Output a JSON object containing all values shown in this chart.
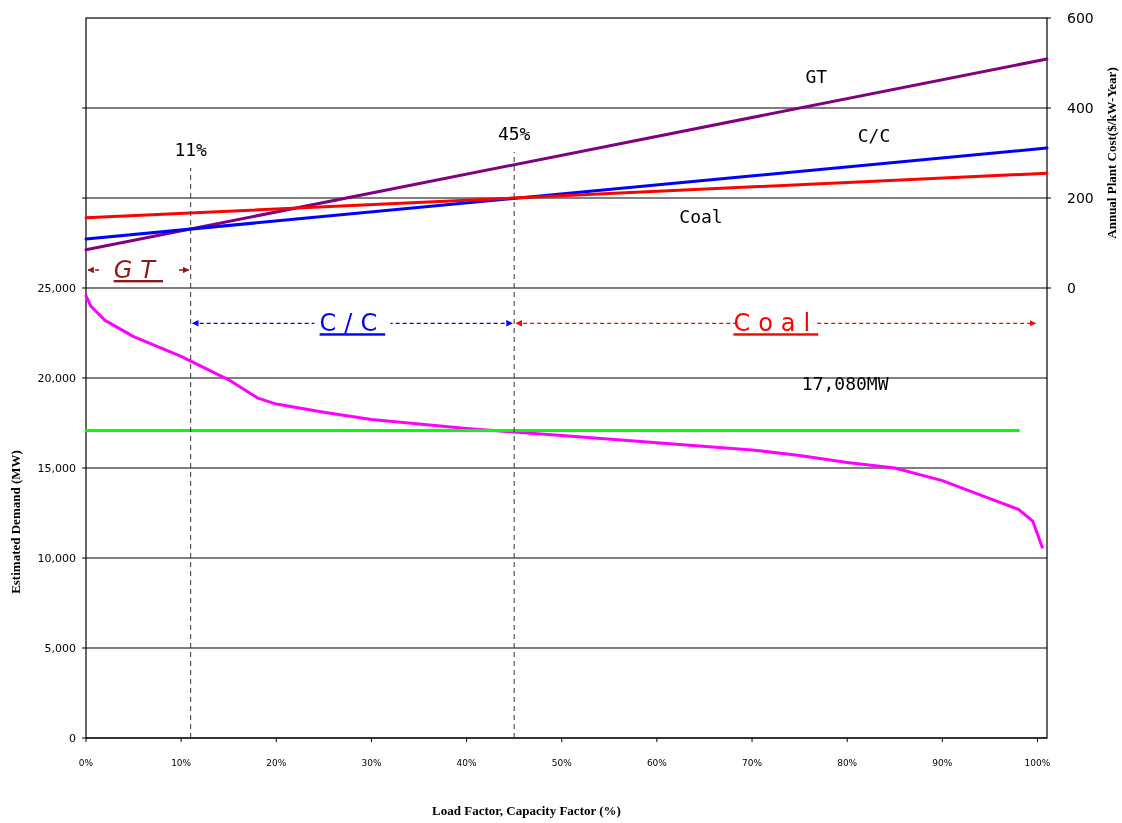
{
  "chart_data": {
    "type": "line",
    "xlabel": "Load Factor, Capacity Factor (%)",
    "ylabel": "Estimated Demand (MW)",
    "y2label": "Annual Plant Cost($/kW-Year)",
    "xlim": [
      0,
      101
    ],
    "xticks": [
      {
        "value": 0,
        "label": "0%"
      },
      {
        "value": 10,
        "label": "10%"
      },
      {
        "value": 20,
        "label": "20%"
      },
      {
        "value": 30,
        "label": "30%"
      },
      {
        "value": 40,
        "label": "40%"
      },
      {
        "value": 50,
        "label": "50%"
      },
      {
        "value": 60,
        "label": "60%"
      },
      {
        "value": 70,
        "label": "70%"
      },
      {
        "value": 80,
        "label": "80%"
      },
      {
        "value": 90,
        "label": "90%"
      },
      {
        "value": 100,
        "label": "100%"
      }
    ],
    "ylim": [
      0,
      40000
    ],
    "yticks": [
      {
        "value": 0,
        "label": "0"
      },
      {
        "value": 5000,
        "label": "5,000"
      },
      {
        "value": 10000,
        "label": "10,000"
      },
      {
        "value": 15000,
        "label": "15,000"
      },
      {
        "value": 20000,
        "label": "20,000"
      },
      {
        "value": 25000,
        "label": "25,000"
      },
      {
        "value": 30000,
        "label": null
      },
      {
        "value": 35000,
        "label": null
      }
    ],
    "y2lim": [
      -1000,
      600
    ],
    "y2ticks": [
      0,
      200,
      400,
      600
    ],
    "grid": "y",
    "marker": "none",
    "line_style": "solid",
    "series": [
      {
        "name": "GT",
        "color": "#800080",
        "axis": "y2",
        "x": [
          0,
          101
        ],
        "values": [
          85,
          509
        ]
      },
      {
        "name": "C/C",
        "color": "#0000ff",
        "axis": "y2",
        "x": [
          0,
          101
        ],
        "values": [
          109,
          311
        ]
      },
      {
        "name": "Coal",
        "color": "#ff0000",
        "axis": "y2",
        "x": [
          0,
          101
        ],
        "values": [
          156,
          255
        ]
      },
      {
        "color": "#ff00ff",
        "x": [
          0,
          0.5,
          2,
          5,
          10,
          15,
          18,
          20,
          25,
          30,
          40,
          45,
          50,
          60,
          70,
          75,
          80,
          85,
          90,
          95,
          98,
          99.5,
          100.5
        ],
        "values": [
          24560,
          24000,
          23200,
          22300,
          21200,
          19900,
          18900,
          18550,
          18100,
          17700,
          17200,
          17000,
          16800,
          16400,
          16000,
          15700,
          15300,
          15000,
          14300,
          13300,
          12700,
          12050,
          10600
        ]
      },
      {
        "color": "#00ff00",
        "x": [
          0,
          98
        ],
        "values": [
          17080,
          17080
        ]
      }
    ],
    "ref_lines": [
      {
        "axis": "x",
        "value": 11,
        "label": "11%",
        "line_style": "dashed"
      },
      {
        "axis": "x",
        "value": 45,
        "label": "45%",
        "line_style": "dashed"
      }
    ],
    "annotations": [
      "GT",
      "C/C",
      "Coal",
      "17,080MW"
    ]
  }
}
